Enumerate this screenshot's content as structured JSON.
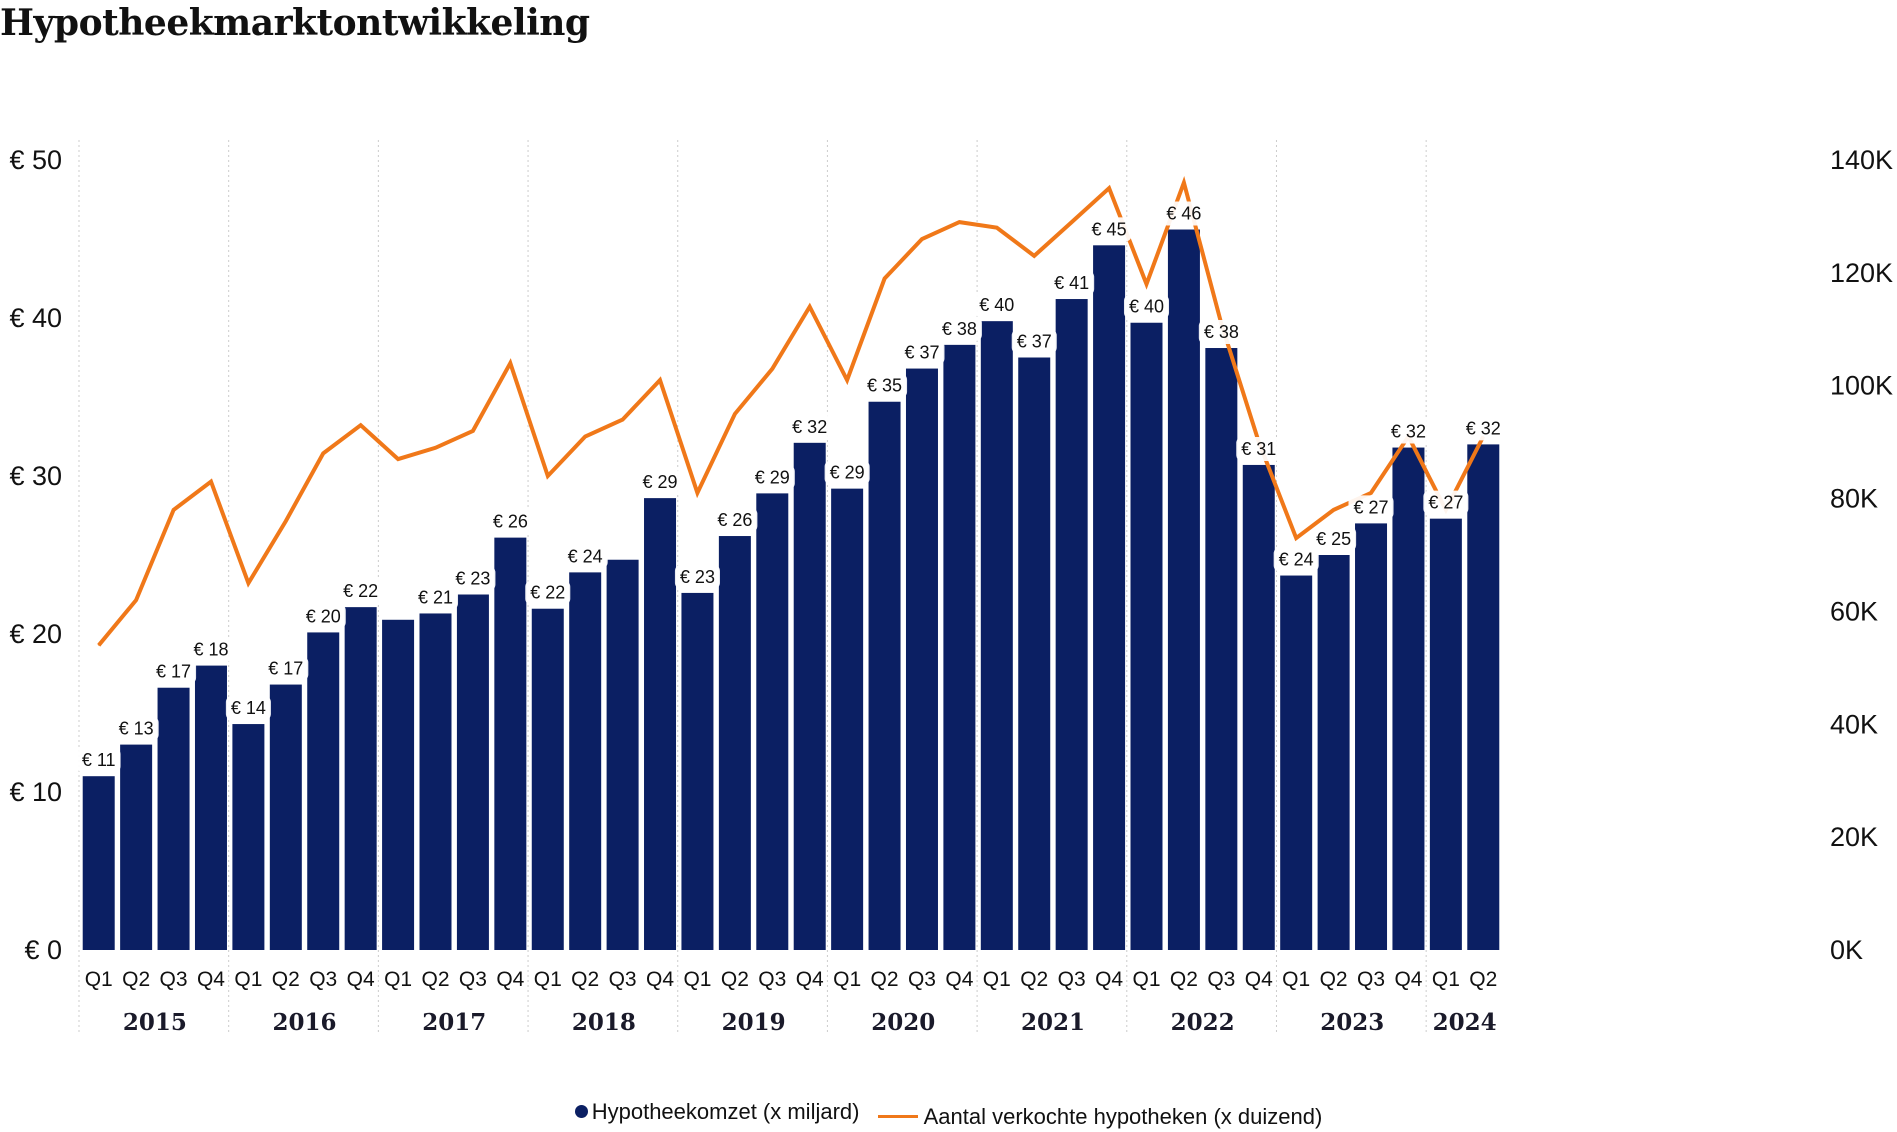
{
  "title": "Hypotheekmarktontwikkeling",
  "colors": {
    "bar": "#0b1f63",
    "line": "#f07819",
    "grid": "#cccccc"
  },
  "legend": {
    "bar_label": "Hypotheekomzet (x miljard)",
    "line_label": "Aantal verkochte hypotheken (x duizend)"
  },
  "chart_data": {
    "type": "bar",
    "title": "Hypotheekmarktontwikkeling",
    "years": [
      "2015",
      "2016",
      "2017",
      "2018",
      "2019",
      "2020",
      "2021",
      "2022",
      "2023",
      "2024"
    ],
    "categories": [
      "Q1",
      "Q2",
      "Q3",
      "Q4",
      "Q1",
      "Q2",
      "Q3",
      "Q4",
      "Q1",
      "Q2",
      "Q3",
      "Q4",
      "Q1",
      "Q2",
      "Q3",
      "Q4",
      "Q1",
      "Q2",
      "Q3",
      "Q4",
      "Q1",
      "Q2",
      "Q3",
      "Q4",
      "Q1",
      "Q2",
      "Q3",
      "Q4",
      "Q1",
      "Q2",
      "Q3",
      "Q4",
      "Q1",
      "Q2",
      "Q3",
      "Q4",
      "Q1",
      "Q2"
    ],
    "y_left": {
      "ylim": [
        0,
        50
      ],
      "ticks": [
        "€ 0",
        "€ 10",
        "€ 20",
        "€ 30",
        "€ 40",
        "€ 50"
      ]
    },
    "y_right": {
      "ylim": [
        0,
        140
      ],
      "ticks": [
        "0K",
        "20K",
        "40K",
        "60K",
        "80K",
        "100K",
        "120K",
        "140K"
      ]
    },
    "series": [
      {
        "name": "Hypotheekomzet (x miljard)",
        "type": "bar",
        "axis": "left",
        "values": [
          11,
          13,
          16.6,
          18,
          14.3,
          16.8,
          20.1,
          21.7,
          20.9,
          21.3,
          22.5,
          26.1,
          21.6,
          23.9,
          24.7,
          28.6,
          22.6,
          26.2,
          28.9,
          32.1,
          29.2,
          34.7,
          36.8,
          38.3,
          39.8,
          37.5,
          41.2,
          44.6,
          39.7,
          45.6,
          38.1,
          30.7,
          23.7,
          25,
          27,
          31.8,
          27.3,
          32
        ]
      },
      {
        "name": "Aantal verkochte hypotheken (x duizend)",
        "type": "line",
        "axis": "right",
        "values": [
          54,
          62,
          78,
          83,
          65,
          76,
          88,
          93,
          87,
          89,
          92,
          104,
          84,
          91,
          94,
          101,
          81,
          95,
          103,
          114,
          101,
          119,
          126,
          129,
          128,
          123,
          129,
          135,
          118,
          136,
          111,
          90,
          73,
          78,
          81,
          91,
          78,
          91
        ]
      }
    ],
    "data_labels": [
      "€ 11",
      "€ 13",
      "€ 17",
      "€ 18",
      "€ 14",
      "€ 17",
      "€ 20",
      "€ 22",
      "",
      "€ 21",
      "€ 23",
      "€ 26",
      "€ 22",
      "€ 24",
      "",
      "€ 29",
      "€ 23",
      "€ 26",
      "€ 29",
      "€ 32",
      "€ 29",
      "€ 35",
      "€ 37",
      "€ 38",
      "€ 40",
      "€ 37",
      "€ 41",
      "€ 45",
      "€ 40",
      "€ 46",
      "€ 38",
      "€ 31",
      "€ 24",
      "€ 25",
      "€ 27",
      "€ 32",
      "€ 27",
      "€ 32"
    ],
    "grid": "vertical dotted separators between years",
    "legend_position": "bottom-center"
  }
}
